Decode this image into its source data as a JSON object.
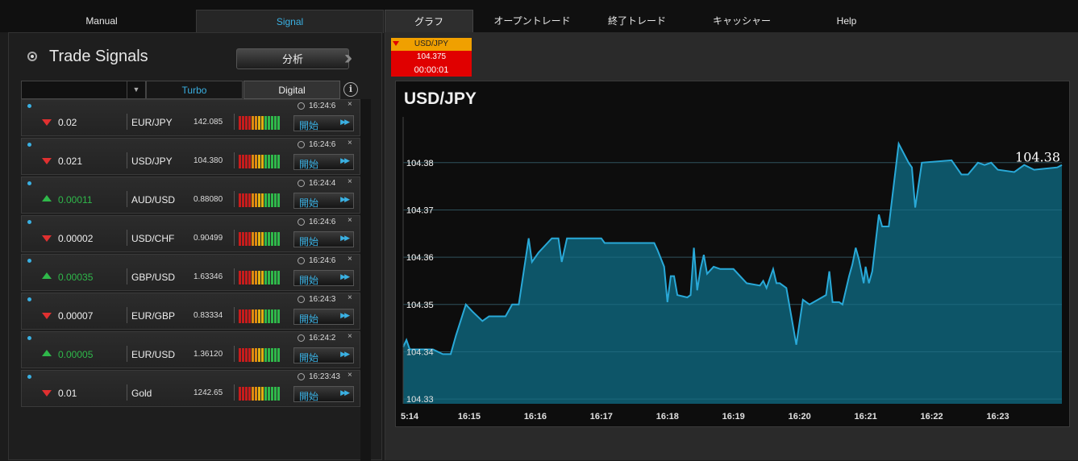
{
  "nav": {
    "manual": "Manual",
    "signal": "Signal",
    "graph": "グラフ",
    "open_trade": "オープントレード",
    "closed_trade": "終了トレード",
    "cashier": "キャッシャー",
    "help": "Help"
  },
  "panel": {
    "title": "Trade Signals",
    "analyze_label": "分析",
    "tab_turbo": "Turbo",
    "tab_digital": "Digital",
    "info": "i"
  },
  "colors": {
    "accent": "#3ab0e2",
    "up": "#2fb84a",
    "down": "#e03030",
    "chart_line": "#29a9d8",
    "chart_fill": "#0e5a6e"
  },
  "signals": [
    {
      "direction": "down",
      "change": "0.02",
      "pair": "EUR/JPY",
      "price": "142.085",
      "time": "16:24:6",
      "start": "開始"
    },
    {
      "direction": "down",
      "change": "0.021",
      "pair": "USD/JPY",
      "price": "104.380",
      "time": "16:24:6",
      "start": "開始"
    },
    {
      "direction": "up",
      "change": "0.00011",
      "pair": "AUD/USD",
      "price": "0.88080",
      "time": "16:24:4",
      "start": "開始"
    },
    {
      "direction": "down",
      "change": "0.00002",
      "pair": "USD/CHF",
      "price": "0.90499",
      "time": "16:24:6",
      "start": "開始"
    },
    {
      "direction": "up",
      "change": "0.00035",
      "pair": "GBP/USD",
      "price": "1.63346",
      "time": "16:24:6",
      "start": "開始"
    },
    {
      "direction": "down",
      "change": "0.00007",
      "pair": "EUR/GBP",
      "price": "0.83334",
      "time": "16:24:3",
      "start": "開始"
    },
    {
      "direction": "up",
      "change": "0.00005",
      "pair": "EUR/USD",
      "price": "1.36120",
      "time": "16:24:2",
      "start": "開始"
    },
    {
      "direction": "down",
      "change": "0.01",
      "pair": "Gold",
      "price": "1242.65",
      "time": "16:23:43",
      "start": "開始"
    }
  ],
  "ticker": {
    "symbol": "USD/JPY",
    "value": "104.375",
    "timer": "00:00:01"
  },
  "chart_data": {
    "type": "area",
    "title": "USD/JPY",
    "last_label": "104.38",
    "ylim": [
      104.329,
      104.389
    ],
    "y_ticks": [
      "104.33",
      "104.34",
      "104.35",
      "104.36",
      "104.37",
      "104.38"
    ],
    "x_ticks": [
      "5:14",
      "16:15",
      "16:16",
      "16:17",
      "16:18",
      "16:19",
      "16:20",
      "16:21",
      "16:22",
      "16:23"
    ],
    "x_tick_minutes": [
      14,
      15,
      16,
      17,
      18,
      19,
      20,
      21,
      22,
      23
    ],
    "xlim_minutes": [
      14.0,
      23.97
    ],
    "points": [
      [
        14.0,
        104.341
      ],
      [
        14.05,
        104.3425
      ],
      [
        14.1,
        104.3405
      ],
      [
        14.45,
        104.3405
      ],
      [
        14.6,
        104.3395
      ],
      [
        14.72,
        104.3395
      ],
      [
        14.8,
        104.3435
      ],
      [
        14.95,
        104.35
      ],
      [
        15.05,
        104.3485
      ],
      [
        15.2,
        104.3465
      ],
      [
        15.3,
        104.3475
      ],
      [
        15.55,
        104.3475
      ],
      [
        15.65,
        104.35
      ],
      [
        15.75,
        104.35
      ],
      [
        15.9,
        104.364
      ],
      [
        15.95,
        104.359
      ],
      [
        16.05,
        104.361
      ],
      [
        16.15,
        104.3625
      ],
      [
        16.25,
        104.364
      ],
      [
        16.35,
        104.364
      ],
      [
        16.4,
        104.359
      ],
      [
        16.48,
        104.364
      ],
      [
        17.0,
        104.364
      ],
      [
        17.05,
        104.363
      ],
      [
        17.5,
        104.363
      ],
      [
        17.6,
        104.363
      ],
      [
        17.8,
        104.363
      ],
      [
        17.85,
        104.3615
      ],
      [
        17.95,
        104.358
      ],
      [
        18.0,
        104.3505
      ],
      [
        18.05,
        104.356
      ],
      [
        18.1,
        104.356
      ],
      [
        18.15,
        104.352
      ],
      [
        18.3,
        104.3515
      ],
      [
        18.35,
        104.352
      ],
      [
        18.4,
        104.362
      ],
      [
        18.45,
        104.353
      ],
      [
        18.5,
        104.3575
      ],
      [
        18.55,
        104.3605
      ],
      [
        18.6,
        104.3565
      ],
      [
        18.7,
        104.358
      ],
      [
        18.8,
        104.3575
      ],
      [
        19.0,
        104.3575
      ],
      [
        19.2,
        104.3545
      ],
      [
        19.4,
        104.354
      ],
      [
        19.45,
        104.355
      ],
      [
        19.5,
        104.3535
      ],
      [
        19.6,
        104.3575
      ],
      [
        19.65,
        104.3545
      ],
      [
        19.7,
        104.3545
      ],
      [
        19.8,
        104.3535
      ],
      [
        19.95,
        104.3415
      ],
      [
        20.05,
        104.351
      ],
      [
        20.15,
        104.35
      ],
      [
        20.4,
        104.352
      ],
      [
        20.45,
        104.357
      ],
      [
        20.5,
        104.3505
      ],
      [
        20.6,
        104.3505
      ],
      [
        20.65,
        104.35
      ],
      [
        20.75,
        104.356
      ],
      [
        20.8,
        104.3585
      ],
      [
        20.85,
        104.362
      ],
      [
        20.9,
        104.3595
      ],
      [
        20.97,
        104.3545
      ],
      [
        21.0,
        104.358
      ],
      [
        21.05,
        104.3545
      ],
      [
        21.1,
        104.357
      ],
      [
        21.2,
        104.369
      ],
      [
        21.25,
        104.3665
      ],
      [
        21.35,
        104.3665
      ],
      [
        21.5,
        104.384
      ],
      [
        21.65,
        104.38
      ],
      [
        21.7,
        104.379
      ],
      [
        21.75,
        104.3705
      ],
      [
        21.85,
        104.38
      ],
      [
        22.3,
        104.3805
      ],
      [
        22.45,
        104.3775
      ],
      [
        22.55,
        104.3775
      ],
      [
        22.7,
        104.38
      ],
      [
        22.8,
        104.3795
      ],
      [
        22.9,
        104.38
      ],
      [
        23.0,
        104.3785
      ],
      [
        23.25,
        104.378
      ],
      [
        23.4,
        104.3795
      ],
      [
        23.55,
        104.3785
      ],
      [
        23.9,
        104.379
      ],
      [
        23.97,
        104.3795
      ]
    ]
  }
}
